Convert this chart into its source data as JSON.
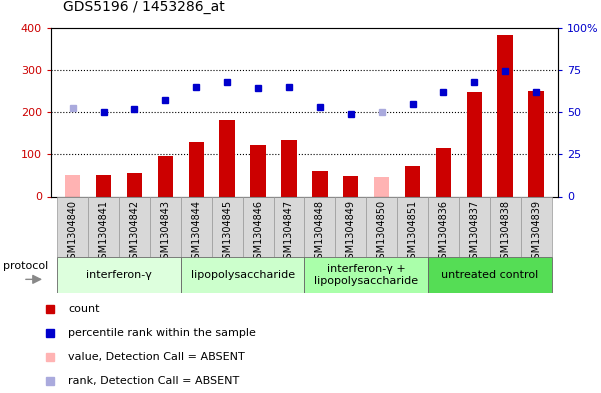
{
  "title": "GDS5196 / 1453286_at",
  "samples": [
    "GSM1304840",
    "GSM1304841",
    "GSM1304842",
    "GSM1304843",
    "GSM1304844",
    "GSM1304845",
    "GSM1304846",
    "GSM1304847",
    "GSM1304848",
    "GSM1304849",
    "GSM1304850",
    "GSM1304851",
    "GSM1304836",
    "GSM1304837",
    "GSM1304838",
    "GSM1304839"
  ],
  "bar_values": [
    50,
    52,
    55,
    95,
    130,
    180,
    123,
    133,
    60,
    48,
    45,
    73,
    115,
    248,
    382,
    250
  ],
  "bar_absent": [
    true,
    false,
    false,
    false,
    false,
    false,
    false,
    false,
    false,
    false,
    true,
    false,
    false,
    false,
    false,
    false
  ],
  "dot_values": [
    210,
    200,
    207,
    228,
    260,
    270,
    257,
    260,
    213,
    195,
    200,
    220,
    248,
    272,
    296,
    248
  ],
  "dot_absent": [
    true,
    false,
    false,
    false,
    false,
    false,
    false,
    false,
    false,
    false,
    true,
    false,
    false,
    false,
    false,
    false
  ],
  "bar_color": "#cc0000",
  "bar_absent_color": "#ffb3b3",
  "dot_color": "#0000cc",
  "dot_absent_color": "#aaaadd",
  "ylim_left": [
    0,
    400
  ],
  "ylim_right": [
    0,
    100
  ],
  "yticks_left": [
    0,
    100,
    200,
    300,
    400
  ],
  "ytick_labels_right": [
    "0",
    "25",
    "50",
    "75",
    "100%"
  ],
  "groups": [
    {
      "label": "interferon-γ",
      "start": 0,
      "end": 4,
      "color": "#ddffdd"
    },
    {
      "label": "lipopolysaccharide",
      "start": 4,
      "end": 8,
      "color": "#ccffcc"
    },
    {
      "label": "interferon-γ +\nlipopolysaccharide",
      "start": 8,
      "end": 12,
      "color": "#aaffaa"
    },
    {
      "label": "untreated control",
      "start": 12,
      "end": 16,
      "color": "#55dd55"
    }
  ],
  "background_color": "#ffffff",
  "bar_width": 0.5,
  "plot_bg": "#ffffff",
  "xtick_bg": "#d8d8d8"
}
